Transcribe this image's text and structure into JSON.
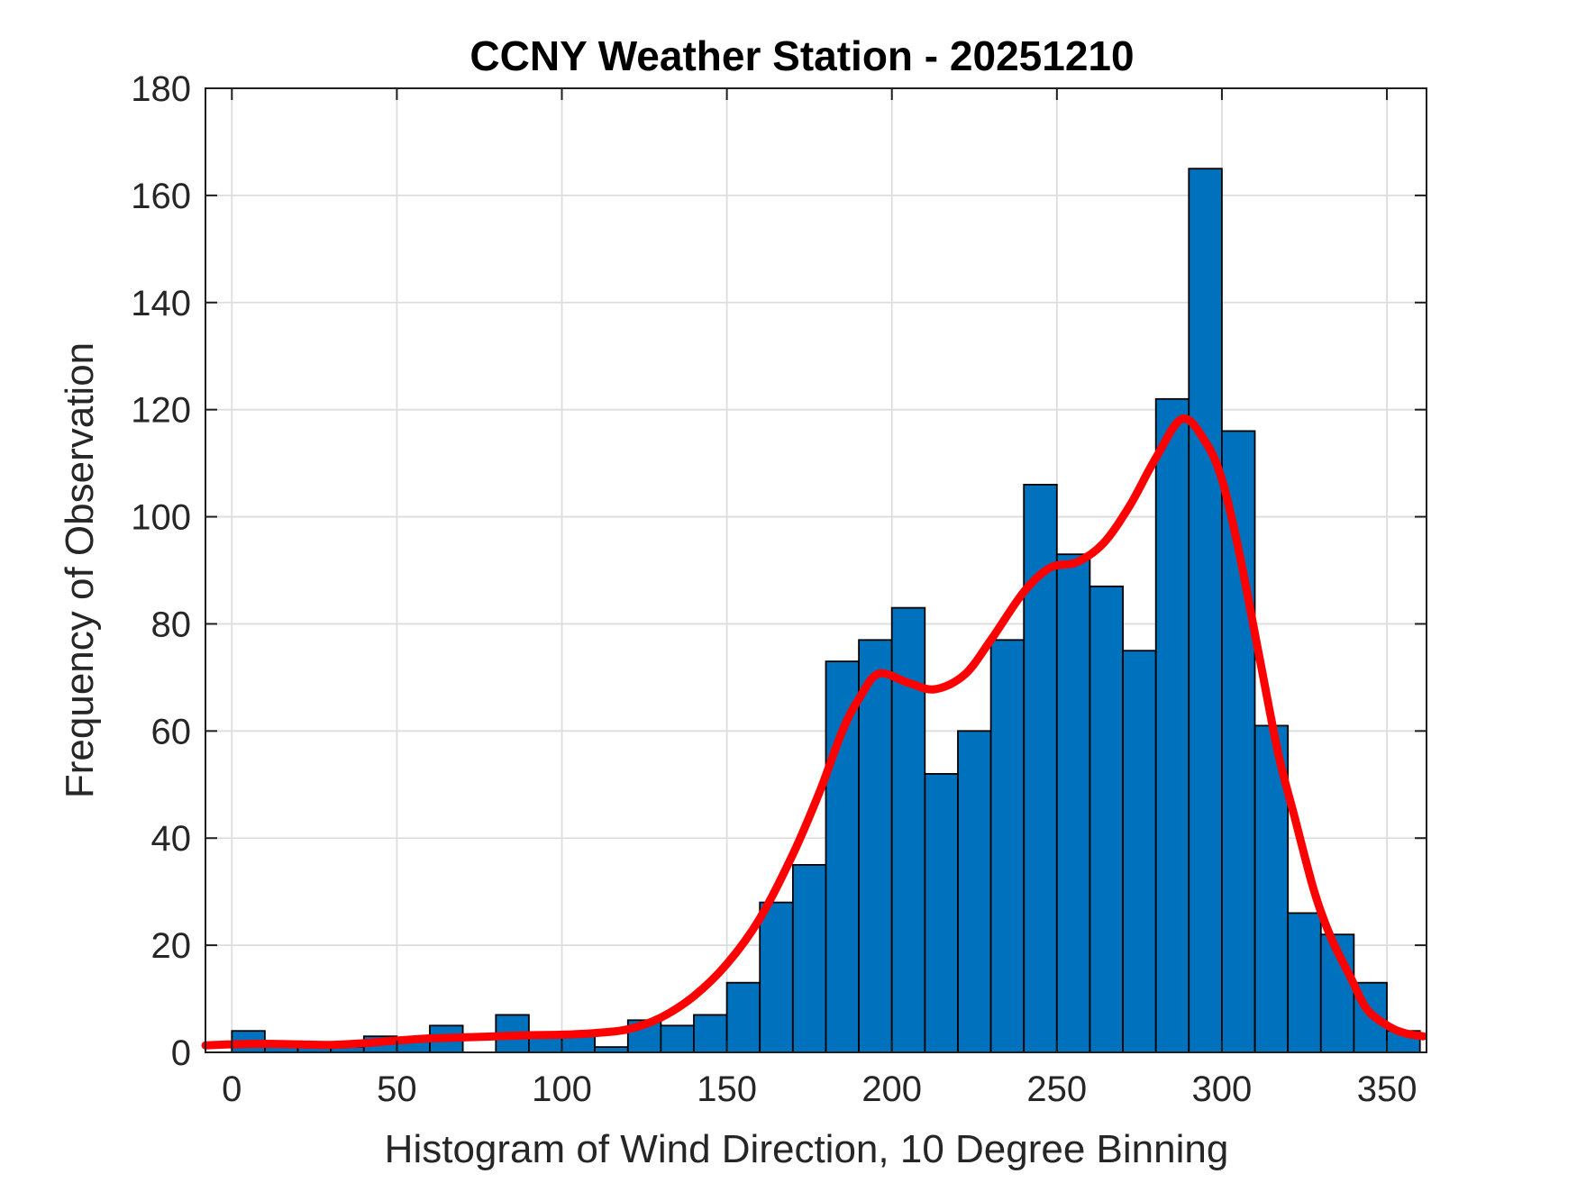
{
  "chart_data": {
    "type": "bar",
    "title": "CCNY Weather Station - 20251210",
    "xlabel": "Histogram of Wind Direction, 10 Degree Binning",
    "ylabel": "Frequency of Observation",
    "bin_width_degrees": 10,
    "categories": [
      0,
      10,
      20,
      30,
      40,
      50,
      60,
      70,
      80,
      90,
      100,
      110,
      120,
      130,
      140,
      150,
      160,
      170,
      180,
      190,
      200,
      210,
      220,
      230,
      240,
      250,
      260,
      270,
      280,
      290,
      300,
      310,
      320,
      330,
      340,
      350
    ],
    "values": [
      4,
      2,
      1,
      1,
      3,
      2,
      5,
      0,
      7,
      3,
      3,
      1,
      6,
      5,
      7,
      13,
      28,
      35,
      73,
      77,
      83,
      52,
      60,
      77,
      106,
      93,
      87,
      75,
      122,
      165,
      116,
      61,
      26,
      22,
      13,
      4
    ],
    "xticks": [
      0,
      50,
      100,
      150,
      200,
      250,
      300,
      350
    ],
    "yticks": [
      0,
      20,
      40,
      60,
      80,
      100,
      120,
      140,
      160,
      180
    ],
    "xlim": [
      -8,
      362
    ],
    "ylim": [
      0,
      180
    ],
    "grid": true,
    "legend_position": "none",
    "bar_color": "#0072BD",
    "bar_edge_color": "#000000",
    "grid_color": "#DDDDDD",
    "frame_color": "#1f1f1f",
    "background": "#FFFFFF",
    "overlay_curve": {
      "name": "smoothed-density-fit",
      "color": "#FF0000",
      "line_width": 9,
      "points": [
        [
          -8,
          1.3
        ],
        [
          0,
          1.5
        ],
        [
          10,
          1.6
        ],
        [
          20,
          1.5
        ],
        [
          30,
          1.4
        ],
        [
          40,
          1.7
        ],
        [
          50,
          2.2
        ],
        [
          60,
          2.6
        ],
        [
          70,
          2.8
        ],
        [
          80,
          3.0
        ],
        [
          90,
          3.2
        ],
        [
          100,
          3.3
        ],
        [
          110,
          3.6
        ],
        [
          120,
          4.3
        ],
        [
          130,
          6.5
        ],
        [
          140,
          10.5
        ],
        [
          150,
          16.5
        ],
        [
          160,
          25
        ],
        [
          170,
          37
        ],
        [
          178,
          48.5
        ],
        [
          185,
          60
        ],
        [
          190,
          66
        ],
        [
          196,
          70.7
        ],
        [
          205,
          69
        ],
        [
          213,
          67.8
        ],
        [
          222,
          70.5
        ],
        [
          230,
          77
        ],
        [
          240,
          86
        ],
        [
          248,
          90.5
        ],
        [
          256,
          91.5
        ],
        [
          264,
          95
        ],
        [
          272,
          102
        ],
        [
          280,
          111
        ],
        [
          288,
          118.3
        ],
        [
          295,
          114
        ],
        [
          300,
          107
        ],
        [
          305,
          94
        ],
        [
          311,
          75
        ],
        [
          317,
          56
        ],
        [
          322,
          44
        ],
        [
          328,
          30
        ],
        [
          333,
          21.5
        ],
        [
          339,
          14
        ],
        [
          344,
          8
        ],
        [
          351,
          4.7
        ],
        [
          356,
          3.5
        ],
        [
          361,
          3
        ]
      ]
    }
  }
}
